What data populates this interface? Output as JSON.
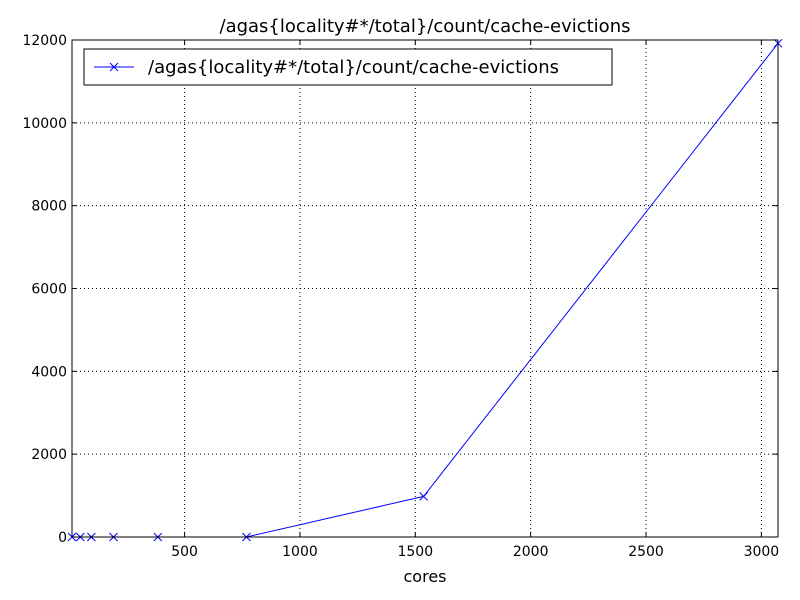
{
  "chart_data": {
    "type": "line",
    "title": "/agas{locality#*/total}/count/cache-evictions",
    "xlabel": "cores",
    "ylabel": "",
    "xlim": [
      12,
      3072
    ],
    "ylim": [
      0,
      12000
    ],
    "xticks": [
      500,
      1000,
      1500,
      2000,
      2500,
      3000
    ],
    "yticks": [
      0,
      2000,
      4000,
      6000,
      8000,
      10000,
      12000
    ],
    "grid": true,
    "legend_position": "top-left",
    "series": [
      {
        "name": "/agas{locality#*/total}/count/cache-evictions",
        "color": "#0000ff",
        "marker": "x",
        "x": [
          12,
          48,
          96,
          192,
          384,
          768,
          1536,
          3072
        ],
        "y": [
          0,
          0,
          0,
          0,
          0,
          0,
          980,
          11920
        ]
      }
    ]
  }
}
